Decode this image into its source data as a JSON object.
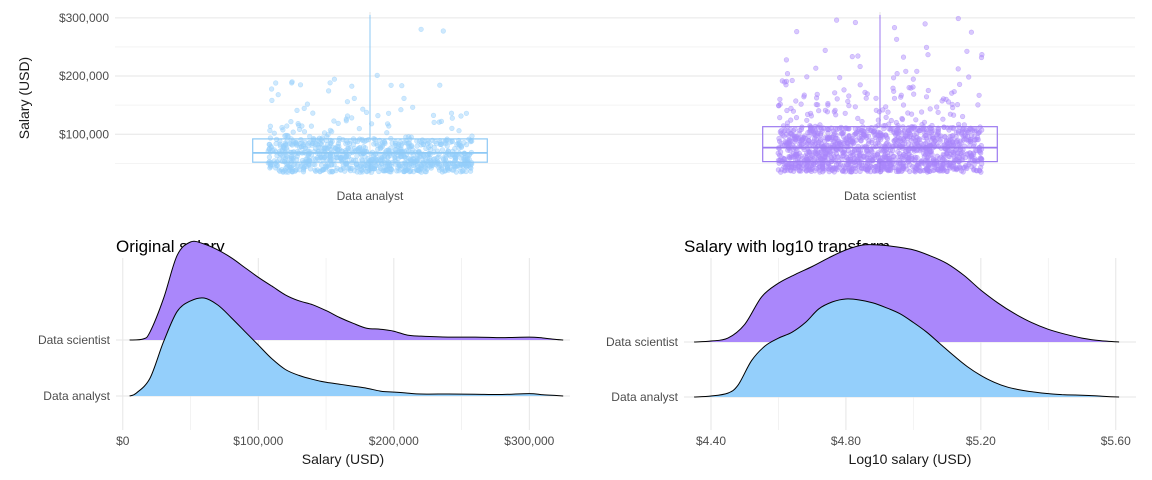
{
  "colors": {
    "analyst": "#94cffb",
    "scientist": "#aa87fb",
    "analyst_line": "#8ec9f5",
    "scientist_line": "#9c7af0",
    "outline": "#000000"
  },
  "chart_data": [
    {
      "type": "box",
      "ylabel": "Salary (USD)",
      "categories": [
        "Data analyst",
        "Data scientist"
      ],
      "ylim": [
        30000,
        310000
      ],
      "yticks": [
        100000,
        200000,
        300000
      ],
      "ytick_labels": [
        "$100,000",
        "$200,000",
        "$300,000"
      ],
      "boxes": [
        {
          "name": "Data analyst",
          "q1": 52000,
          "median": 68000,
          "q3": 92000,
          "whisker_low": 35000,
          "whisker_high": 305000,
          "n_points": 900,
          "max_point": 285000
        },
        {
          "name": "Data scientist",
          "q1": 53000,
          "median": 77000,
          "q3": 113000,
          "whisker_low": 35000,
          "whisker_high": 305000,
          "n_points": 1400,
          "max_point": 300000
        }
      ],
      "grid": true
    },
    {
      "type": "ridgeline",
      "title": "Original salary",
      "xlabel": "Salary (USD)",
      "categories": [
        "Data analyst",
        "Data scientist"
      ],
      "xlim": [
        -5000,
        330000
      ],
      "xticks": [
        0,
        100000,
        200000,
        300000
      ],
      "xtick_labels": [
        "$0",
        "$100,000",
        "$200,000",
        "$300,000"
      ],
      "series": [
        {
          "name": "Data analyst",
          "x": [
            5000,
            10000,
            20000,
            30000,
            40000,
            50000,
            60000,
            70000,
            80000,
            90000,
            100000,
            110000,
            120000,
            130000,
            140000,
            150000,
            160000,
            170000,
            180000,
            190000,
            200000,
            210000,
            220000,
            240000,
            260000,
            280000,
            300000,
            310000,
            320000,
            325000
          ],
          "density": [
            0.0,
            0.03,
            0.18,
            0.55,
            0.86,
            0.97,
            1.0,
            0.93,
            0.8,
            0.66,
            0.52,
            0.38,
            0.27,
            0.21,
            0.17,
            0.14,
            0.12,
            0.1,
            0.08,
            0.05,
            0.04,
            0.03,
            0.02,
            0.02,
            0.018,
            0.015,
            0.025,
            0.012,
            0.005,
            0.0
          ]
        },
        {
          "name": "Data scientist",
          "x": [
            5000,
            15000,
            20000,
            30000,
            40000,
            50000,
            60000,
            70000,
            80000,
            90000,
            100000,
            110000,
            120000,
            130000,
            140000,
            150000,
            160000,
            170000,
            180000,
            190000,
            200000,
            210000,
            220000,
            240000,
            260000,
            280000,
            300000,
            310000,
            320000,
            325000
          ],
          "density": [
            0.0,
            0.01,
            0.08,
            0.42,
            0.86,
            1.0,
            0.98,
            0.92,
            0.84,
            0.74,
            0.64,
            0.55,
            0.46,
            0.4,
            0.36,
            0.3,
            0.23,
            0.17,
            0.12,
            0.11,
            0.09,
            0.05,
            0.04,
            0.03,
            0.03,
            0.025,
            0.03,
            0.02,
            0.005,
            0.0
          ]
        }
      ],
      "grid": true
    },
    {
      "type": "ridgeline",
      "title": "Salary with log10 transform",
      "xlabel": "Log10 salary (USD)",
      "categories": [
        "Data analyst",
        "Data scientist"
      ],
      "xlim": [
        4.32,
        5.66
      ],
      "xticks": [
        4.4,
        4.8,
        5.2,
        5.6
      ],
      "xtick_labels": [
        "$4.40",
        "$4.80",
        "$5.20",
        "$5.60"
      ],
      "series": [
        {
          "name": "Data analyst",
          "x": [
            4.35,
            4.4,
            4.45,
            4.48,
            4.52,
            4.56,
            4.6,
            4.64,
            4.68,
            4.72,
            4.76,
            4.8,
            4.84,
            4.88,
            4.92,
            4.96,
            5.0,
            5.04,
            5.08,
            5.12,
            5.16,
            5.2,
            5.24,
            5.28,
            5.32,
            5.36,
            5.4,
            5.44,
            5.48,
            5.52,
            5.56,
            5.61
          ],
          "density": [
            0.0,
            0.01,
            0.04,
            0.12,
            0.37,
            0.52,
            0.6,
            0.66,
            0.76,
            0.9,
            0.97,
            1.0,
            0.99,
            0.96,
            0.91,
            0.85,
            0.76,
            0.66,
            0.54,
            0.42,
            0.31,
            0.22,
            0.15,
            0.1,
            0.07,
            0.05,
            0.035,
            0.025,
            0.02,
            0.015,
            0.008,
            0.0
          ]
        },
        {
          "name": "Data scientist",
          "x": [
            4.35,
            4.4,
            4.45,
            4.5,
            4.55,
            4.6,
            4.65,
            4.7,
            4.75,
            4.8,
            4.85,
            4.9,
            4.95,
            5.0,
            5.05,
            5.1,
            5.15,
            5.2,
            5.25,
            5.3,
            5.35,
            5.4,
            5.45,
            5.5,
            5.55,
            5.61
          ],
          "density": [
            0.0,
            0.01,
            0.04,
            0.18,
            0.46,
            0.6,
            0.69,
            0.77,
            0.86,
            0.94,
            0.99,
            0.99,
            0.97,
            0.94,
            0.88,
            0.8,
            0.68,
            0.53,
            0.4,
            0.29,
            0.2,
            0.13,
            0.08,
            0.04,
            0.015,
            0.0
          ]
        }
      ],
      "grid": true
    }
  ]
}
